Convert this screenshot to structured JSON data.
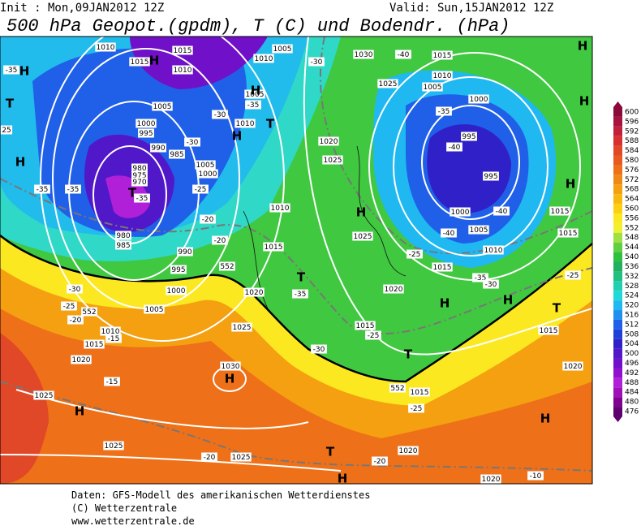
{
  "header": {
    "init": "Init : Mon,09JAN2012  12Z",
    "valid": "Valid: Sun,15JAN2012  12Z",
    "title": "500 hPa Geopot.(gpdm), T (C) und Bodendr. (hPa)"
  },
  "legend": {
    "ticks": [
      600,
      596,
      592,
      588,
      584,
      580,
      576,
      572,
      568,
      564,
      560,
      556,
      552,
      548,
      544,
      540,
      536,
      532,
      528,
      524,
      520,
      516,
      512,
      508,
      504,
      500,
      496,
      492,
      488,
      484,
      480,
      476
    ],
    "colors": [
      "#8b0a3c",
      "#a8123e",
      "#c0203a",
      "#d83030",
      "#e04828",
      "#e85a20",
      "#ee7018",
      "#f08818",
      "#f4a010",
      "#f8b810",
      "#fcd010",
      "#fce820",
      "#f0f030",
      "#a0e040",
      "#60d040",
      "#30c040",
      "#20b060",
      "#20c080",
      "#20d0b0",
      "#20d8d8",
      "#20b8f0",
      "#2090f0",
      "#2060e8",
      "#2040d8",
      "#3020c8",
      "#5018c8",
      "#7010c8",
      "#9010d0",
      "#b020d8",
      "#a010b8",
      "#800090",
      "#600070"
    ]
  },
  "map": {
    "labels": [
      "1010",
      "1015",
      "1015",
      "1010",
      "1010",
      "1005",
      "-30",
      "1030",
      "-40",
      "1015",
      "1025",
      "1010",
      "1005",
      "1000",
      "-35",
      "995",
      "-40",
      "995",
      "1000",
      "-40",
      "1015",
      "1005",
      "-40",
      "1015",
      "1010",
      "1015",
      "-35",
      "-30",
      "-25",
      "1020",
      "1025",
      "1020",
      "1025",
      "1010",
      "1015",
      "-35",
      "1020",
      "1005",
      "1000",
      "995",
      "990",
      "985",
      "-30",
      "980",
      "975",
      "970",
      "-35",
      "980",
      "985",
      "990",
      "995",
      "1000",
      "1005",
      "1010",
      "1015",
      "1020",
      "1025",
      "1030",
      "-15",
      "1025",
      "1025",
      "-20",
      "1025",
      "1015",
      "-25",
      "-25",
      "1015",
      "1020",
      "-20",
      "1020",
      "1015",
      "1020",
      "-10",
      "-35",
      "-35",
      "-35",
      "-30",
      "-25",
      "-20",
      "-15",
      "-25",
      "-20",
      "-20",
      "-30",
      "-35",
      "1010",
      "1005",
      "1000",
      "1005",
      "-30",
      "-25",
      "25",
      "552",
      "552",
      "552"
    ],
    "centers": [
      "H",
      "T",
      "H",
      "H",
      "H",
      "H",
      "T",
      "T",
      "H",
      "T",
      "H",
      "H",
      "T",
      "T",
      "H",
      "H",
      "H",
      "T",
      "H",
      "H",
      "H",
      "H"
    ]
  },
  "footer": {
    "source": "Daten: GFS-Modell des amerikanischen Wetterdienstes",
    "copyright": "(C) Wetterzentrale",
    "url": "www.wetterzentrale.de"
  }
}
